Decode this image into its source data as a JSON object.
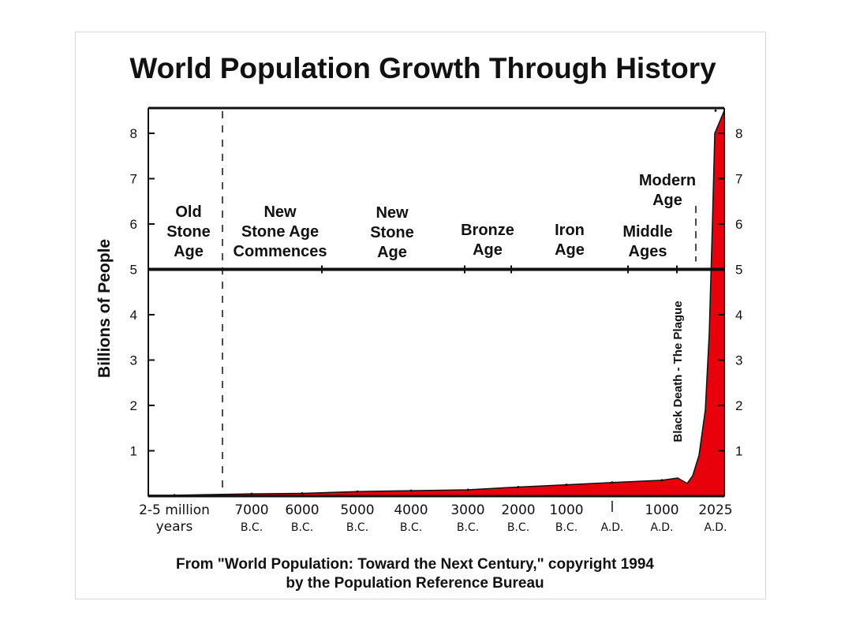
{
  "chart_data": {
    "type": "area",
    "title": "World Population Growth Through History",
    "ylabel": "Billions of People",
    "ylim": [
      0,
      8.5
    ],
    "yticks": [
      "1",
      "2",
      "3",
      "4",
      "5",
      "6",
      "7",
      "8"
    ],
    "xtick_labels": [
      {
        "main": "2-5 million",
        "sub": "years"
      },
      {
        "main": "7000",
        "sub": "B.C."
      },
      {
        "main": "6000",
        "sub": "B.C."
      },
      {
        "main": "5000",
        "sub": "B.C."
      },
      {
        "main": "4000",
        "sub": "B.C."
      },
      {
        "main": "3000",
        "sub": "B.C."
      },
      {
        "main": "2000",
        "sub": "B.C."
      },
      {
        "main": "1000",
        "sub": "B.C."
      },
      {
        "main": "1",
        "sub": "A.D."
      },
      {
        "main": "1000",
        "sub": "A.D."
      },
      {
        "main": "2025",
        "sub": "A.D."
      }
    ],
    "series": [
      {
        "color": "#e8000b",
        "points": [
          {
            "x": "2-5 million years",
            "y": 0.02
          },
          {
            "x": "7000 B.C.",
            "y": 0.05
          },
          {
            "x": "6000 B.C.",
            "y": 0.06
          },
          {
            "x": "5000 B.C.",
            "y": 0.1
          },
          {
            "x": "4000 B.C.",
            "y": 0.12
          },
          {
            "x": "3000 B.C.",
            "y": 0.14
          },
          {
            "x": "2000 B.C.",
            "y": 0.2
          },
          {
            "x": "1000 B.C.",
            "y": 0.25
          },
          {
            "x": "1 A.D.",
            "y": 0.3
          },
          {
            "x": "1000 A.D.",
            "y": 0.35
          },
          {
            "x": "2025 A.D.",
            "y": 8.5
          }
        ]
      }
    ],
    "eras": [
      {
        "lines": [
          "Old",
          "Stone",
          "Age"
        ]
      },
      {
        "lines": [
          "New",
          "Stone Age",
          "Commences"
        ]
      },
      {
        "lines": [
          "New",
          "Stone",
          "Age"
        ]
      },
      {
        "lines": [
          "Bronze",
          "Age"
        ]
      },
      {
        "lines": [
          "Iron",
          "Age"
        ]
      },
      {
        "lines": [
          "Middle",
          "Ages"
        ]
      },
      {
        "lines": [
          "Modern",
          "Age"
        ]
      }
    ],
    "annotations": [
      "Black Death - The Plague"
    ],
    "source_lines": [
      "From \"World Population: Toward the Next Century,\" copyright 1994",
      "by the Population Reference Bureau"
    ]
  }
}
